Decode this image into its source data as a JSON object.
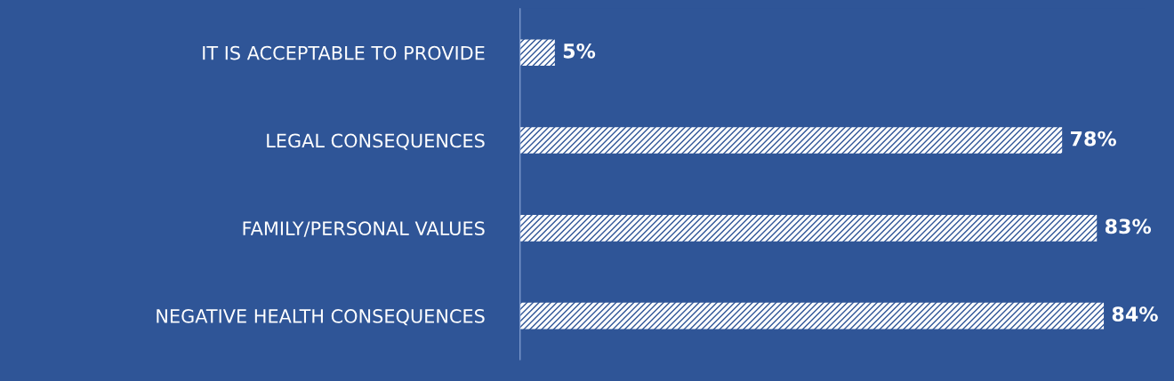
{
  "chart_data": {
    "type": "bar",
    "orientation": "horizontal",
    "categories": [
      "IT IS ACCEPTABLE TO PROVIDE",
      "LEGAL CONSEQUENCES",
      "FAMILY/PERSONAL VALUES",
      "NEGATIVE HEALTH CONSEQUENCES"
    ],
    "values": [
      5,
      78,
      83,
      84
    ],
    "color": "#ffffff",
    "data_labels": true,
    "value_labels": [
      "5%",
      "78%",
      "83%",
      "84%"
    ],
    "grid": false,
    "legend": false
  }
}
